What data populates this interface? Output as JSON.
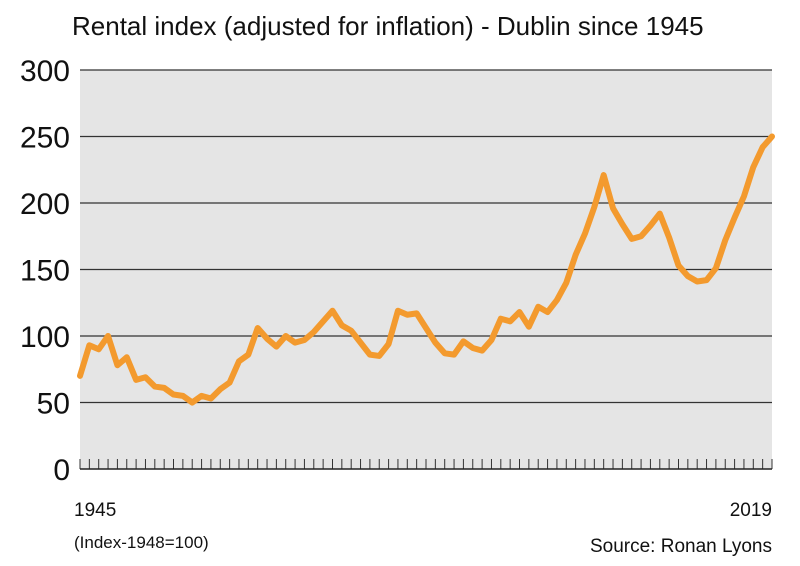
{
  "chart_data": {
    "type": "line",
    "title": "Rental index (adjusted for inflation) - Dublin since 1945",
    "xlabel": "",
    "ylabel": "",
    "x_start_label": "1945",
    "x_end_label": "2019",
    "note": "(Index-1948=100)",
    "source": "Source: Ronan Lyons",
    "ylim": [
      0,
      300
    ],
    "xlim": [
      1945,
      2019
    ],
    "yticks": [
      "0",
      "50",
      "100",
      "150",
      "200",
      "250",
      "300"
    ],
    "grid": true,
    "line_color": "#f39a2e",
    "plot_background": "#e5e5e5",
    "x": [
      1945,
      1946,
      1947,
      1948,
      1949,
      1950,
      1951,
      1952,
      1953,
      1954,
      1955,
      1956,
      1957,
      1958,
      1959,
      1960,
      1961,
      1962,
      1963,
      1964,
      1965,
      1966,
      1967,
      1968,
      1969,
      1970,
      1971,
      1972,
      1973,
      1974,
      1975,
      1976,
      1977,
      1978,
      1979,
      1980,
      1981,
      1982,
      1983,
      1984,
      1985,
      1986,
      1987,
      1988,
      1989,
      1990,
      1991,
      1992,
      1993,
      1994,
      1995,
      1996,
      1997,
      1998,
      1999,
      2000,
      2001,
      2002,
      2003,
      2004,
      2005,
      2006,
      2007,
      2008,
      2009,
      2010,
      2011,
      2012,
      2013,
      2014,
      2015,
      2016,
      2017,
      2018,
      2019
    ],
    "series": [
      {
        "values": [
          70,
          93,
          90,
          100,
          78,
          84,
          67,
          69,
          62,
          61,
          56,
          55,
          50,
          55,
          53,
          60,
          65,
          81,
          86,
          106,
          98,
          92,
          100,
          95,
          97,
          103,
          111,
          119,
          108,
          104,
          95,
          86,
          85,
          94,
          119,
          116,
          117,
          106,
          95,
          87,
          86,
          96,
          91,
          89,
          97,
          113,
          111,
          118,
          107,
          122,
          118,
          127,
          140,
          161,
          177,
          197,
          221,
          196,
          184,
          173,
          175,
          183,
          192,
          174,
          153,
          145,
          141,
          142,
          151,
          172,
          189,
          205,
          227,
          242,
          250
        ]
      }
    ]
  }
}
